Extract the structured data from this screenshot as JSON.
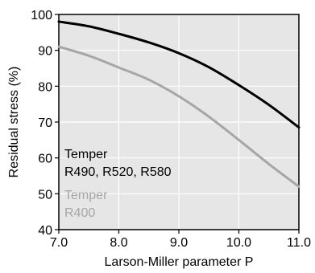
{
  "chart_data": {
    "type": "line",
    "title": "",
    "xlabel": "Larson-Miller parameter P",
    "ylabel": "Residual stress (%)",
    "xlim": [
      7.0,
      11.0
    ],
    "ylim": [
      40,
      100
    ],
    "xticks": [
      7.0,
      8.0,
      9.0,
      10.0,
      11.0
    ],
    "xtick_labels": [
      "7.0",
      "8.0",
      "9.0",
      "10.0",
      "11.0"
    ],
    "yticks": [
      40,
      50,
      60,
      70,
      80,
      90,
      100
    ],
    "ytick_labels": [
      "40",
      "50",
      "60",
      "70",
      "80",
      "90",
      "100"
    ],
    "grid": true,
    "background": "#e6e6e6",
    "gridline_color": "#ffffff",
    "series": [
      {
        "color": "#000000",
        "x": [
          7.0,
          7.5,
          8.0,
          8.5,
          9.0,
          9.5,
          10.0,
          10.5,
          11.0
        ],
        "y": [
          98,
          96.7,
          94.6,
          92.2,
          89.2,
          85.3,
          80.3,
          74.8,
          68.5
        ]
      },
      {
        "color": "#a6a6a6",
        "x": [
          7.0,
          7.5,
          8.0,
          8.5,
          9.0,
          9.5,
          10.0,
          10.5,
          11.0
        ],
        "y": [
          91,
          88.5,
          85.2,
          81.8,
          77.2,
          71.5,
          65.0,
          58.3,
          52.0
        ]
      }
    ],
    "annotations": [
      {
        "lines": [
          "Temper",
          "R490, R520, R580"
        ],
        "color": "#000000"
      },
      {
        "lines": [
          "Temper",
          "R400"
        ],
        "color": "#a6a6a6"
      }
    ]
  }
}
